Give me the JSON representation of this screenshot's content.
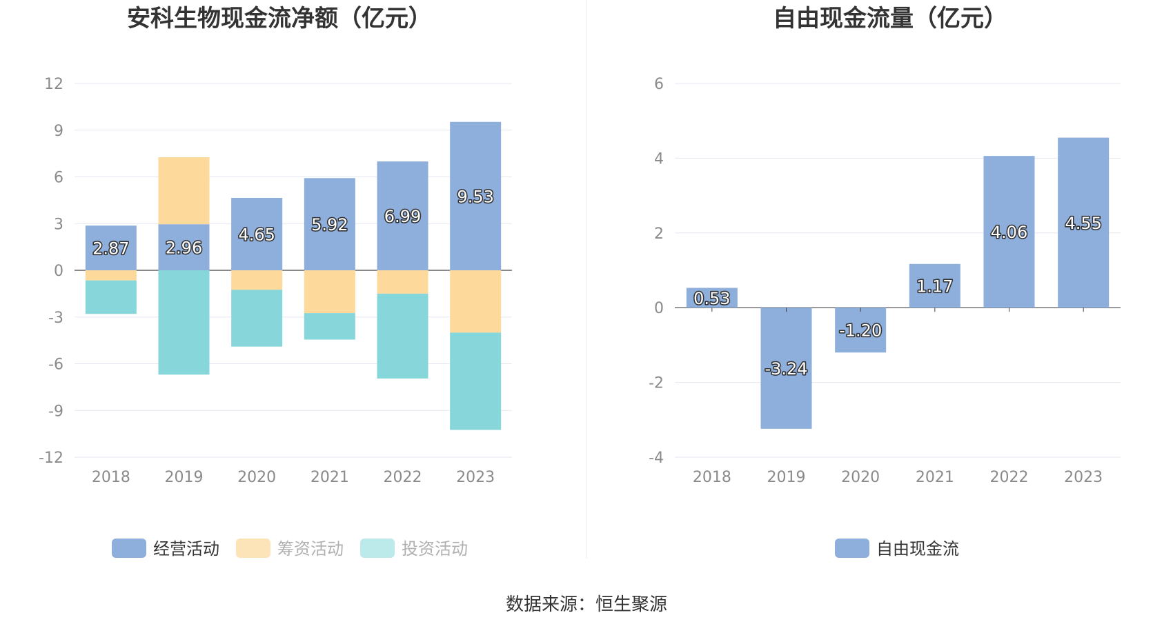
{
  "chart_data": [
    {
      "type": "bar",
      "stacked": true,
      "title": "安科生物现金流净额（亿元）",
      "categories": [
        "2018",
        "2019",
        "2020",
        "2021",
        "2022",
        "2023"
      ],
      "ylim": [
        -12,
        12
      ],
      "yticks": [
        "12",
        "9",
        "6",
        "3",
        "0",
        "-3",
        "-6",
        "-9",
        "-12"
      ],
      "series": [
        {
          "name": "经营活动",
          "color": "#8eaedb",
          "values": [
            2.87,
            2.96,
            4.65,
            5.92,
            6.99,
            9.53
          ],
          "labels": [
            "2.87",
            "2.96",
            "4.65",
            "5.92",
            "6.99",
            "9.53"
          ]
        },
        {
          "name": "筹资活动",
          "color": "#fdd99b",
          "values": [
            -0.65,
            4.3,
            -1.25,
            -2.75,
            -1.5,
            -4.0
          ]
        },
        {
          "name": "投资活动",
          "color": "#87d6d9",
          "values": [
            -2.15,
            -6.7,
            -3.65,
            -1.7,
            -5.45,
            -6.25
          ]
        }
      ],
      "legend": [
        "经营活动",
        "筹资活动",
        "投资活动"
      ],
      "legend_text_colors": [
        "#333333",
        "#b0b0b0",
        "#b0b0b0"
      ],
      "legend_colors": [
        "#8eaedb",
        "#fde3b8",
        "#bce9ea"
      ]
    },
    {
      "type": "bar",
      "title": "自由现金流量（亿元）",
      "categories": [
        "2018",
        "2019",
        "2020",
        "2021",
        "2022",
        "2023"
      ],
      "ylim": [
        -4,
        6
      ],
      "yticks": [
        "6",
        "4",
        "2",
        "0",
        "-2",
        "-4"
      ],
      "series": [
        {
          "name": "自由现金流",
          "color": "#8eaedb",
          "values": [
            0.53,
            -3.24,
            -1.2,
            1.17,
            4.06,
            4.55
          ],
          "labels": [
            "0.53",
            "-3.24",
            "-1.20",
            "1.17",
            "4.06",
            "4.55"
          ]
        }
      ],
      "legend": [
        "自由现金流"
      ],
      "legend_text_colors": [
        "#333333"
      ],
      "legend_colors": [
        "#8eaedb"
      ]
    }
  ],
  "footer": {
    "source": "数据来源：恒生聚源"
  }
}
